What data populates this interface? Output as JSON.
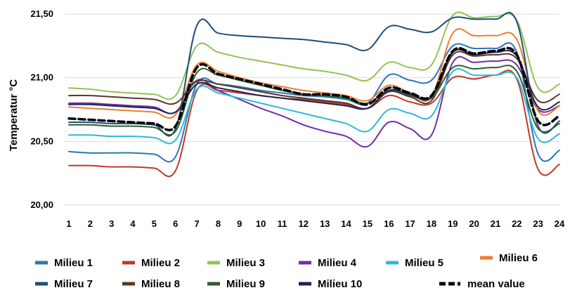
{
  "chart_data": {
    "type": "line",
    "title": "",
    "xlabel": "",
    "ylabel": "Temperatur °C",
    "x": [
      1,
      2,
      3,
      4,
      5,
      6,
      7,
      8,
      9,
      10,
      11,
      12,
      13,
      14,
      15,
      16,
      17,
      18,
      19,
      20,
      21,
      22,
      23,
      24
    ],
    "x_tick_labels": [
      "1",
      "2",
      "3",
      "4",
      "5",
      "6",
      "7",
      "8",
      "9",
      "10",
      "11",
      "12",
      "13",
      "14",
      "15",
      "16",
      "17",
      "18",
      "19",
      "20",
      "21",
      "22",
      "23",
      "24"
    ],
    "y_tick_labels": [
      "20,00",
      "20,50",
      "21,00",
      "21,50"
    ],
    "ylim": [
      20.0,
      21.5
    ],
    "grid": true,
    "legend_position": "bottom",
    "series": [
      {
        "name": "Milieu 1",
        "color": "#2e75b6",
        "dashed": false,
        "values": [
          20.42,
          20.41,
          20.41,
          20.41,
          20.4,
          20.38,
          20.95,
          20.95,
          20.93,
          20.9,
          20.88,
          20.86,
          20.85,
          20.83,
          20.8,
          21.02,
          20.98,
          20.98,
          21.25,
          21.23,
          21.23,
          21.2,
          20.4,
          20.43
        ]
      },
      {
        "name": "Milieu 2",
        "color": "#c0392b",
        "dashed": false,
        "values": [
          20.31,
          20.31,
          20.3,
          20.3,
          20.29,
          20.27,
          20.9,
          20.9,
          20.88,
          20.86,
          20.84,
          20.83,
          20.81,
          20.79,
          20.76,
          20.86,
          20.81,
          20.8,
          21.0,
          20.99,
          21.02,
          20.99,
          20.28,
          20.32
        ]
      },
      {
        "name": "Milieu 3",
        "color": "#92c353",
        "dashed": false,
        "values": [
          20.92,
          20.91,
          20.89,
          20.88,
          20.87,
          20.86,
          21.25,
          21.2,
          21.16,
          21.13,
          21.1,
          21.07,
          21.05,
          21.02,
          20.98,
          21.12,
          21.08,
          21.1,
          21.49,
          21.47,
          21.48,
          21.45,
          20.92,
          20.95
        ]
      },
      {
        "name": "Milieu 4",
        "color": "#7030a0",
        "dashed": false,
        "values": [
          20.8,
          20.8,
          20.79,
          20.78,
          20.77,
          20.73,
          20.98,
          20.9,
          20.83,
          20.76,
          20.7,
          20.63,
          20.58,
          20.54,
          20.46,
          20.65,
          20.6,
          20.55,
          21.12,
          21.12,
          21.13,
          21.1,
          20.75,
          20.78
        ]
      },
      {
        "name": "Milieu 5",
        "color": "#2eb8d8",
        "dashed": false,
        "values": [
          20.55,
          20.55,
          20.54,
          20.54,
          20.53,
          20.51,
          20.91,
          20.88,
          20.84,
          20.8,
          20.76,
          20.72,
          20.68,
          20.64,
          20.58,
          20.75,
          20.72,
          20.7,
          21.05,
          21.02,
          21.02,
          21.0,
          20.52,
          20.56
        ]
      },
      {
        "name": "Milieu 6",
        "color": "#ed7d31",
        "dashed": false,
        "values": [
          20.77,
          20.76,
          20.75,
          20.74,
          20.73,
          20.71,
          21.1,
          21.05,
          21.0,
          20.96,
          20.93,
          20.9,
          20.88,
          20.86,
          20.82,
          20.94,
          20.88,
          20.85,
          21.35,
          21.33,
          21.33,
          21.3,
          20.74,
          20.78
        ]
      },
      {
        "name": "Milieu 7",
        "color": "#1f4e79",
        "dashed": false,
        "values": [
          20.65,
          20.65,
          20.64,
          20.64,
          20.63,
          20.6,
          21.41,
          21.35,
          21.33,
          21.32,
          21.31,
          21.3,
          21.28,
          21.26,
          21.22,
          21.4,
          21.38,
          21.36,
          21.47,
          21.46,
          21.46,
          21.44,
          20.62,
          20.66
        ]
      },
      {
        "name": "Milieu 8",
        "color": "#5a3825",
        "dashed": false,
        "values": [
          20.86,
          20.86,
          20.85,
          20.84,
          20.83,
          20.8,
          20.97,
          20.95,
          20.92,
          20.89,
          20.86,
          20.84,
          20.82,
          20.8,
          20.76,
          20.89,
          20.85,
          20.82,
          21.18,
          21.17,
          21.18,
          21.15,
          20.82,
          20.87
        ]
      },
      {
        "name": "Milieu 9",
        "color": "#2e5e2e",
        "dashed": false,
        "values": [
          20.63,
          20.63,
          20.62,
          20.62,
          20.61,
          20.58,
          21.04,
          21.02,
          20.98,
          20.94,
          20.9,
          20.87,
          20.86,
          20.84,
          20.8,
          20.9,
          20.86,
          20.84,
          21.08,
          21.07,
          21.08,
          21.05,
          20.6,
          20.64
        ]
      },
      {
        "name": "Milieu 10",
        "color": "#1c2454",
        "dashed": false,
        "values": [
          20.79,
          20.79,
          20.78,
          20.77,
          20.76,
          20.73,
          20.95,
          20.92,
          20.89,
          20.86,
          20.84,
          20.82,
          20.8,
          20.78,
          20.76,
          20.9,
          20.87,
          20.85,
          21.2,
          21.18,
          21.2,
          21.17,
          20.77,
          20.81
        ]
      },
      {
        "name": "mean value",
        "color": "#000000",
        "dashed": true,
        "values": [
          20.68,
          20.67,
          20.66,
          20.65,
          20.64,
          20.62,
          21.08,
          21.03,
          20.99,
          20.95,
          20.91,
          20.87,
          20.87,
          20.85,
          20.79,
          20.92,
          20.88,
          20.86,
          21.21,
          21.19,
          21.21,
          21.18,
          20.66,
          20.7
        ]
      }
    ]
  }
}
